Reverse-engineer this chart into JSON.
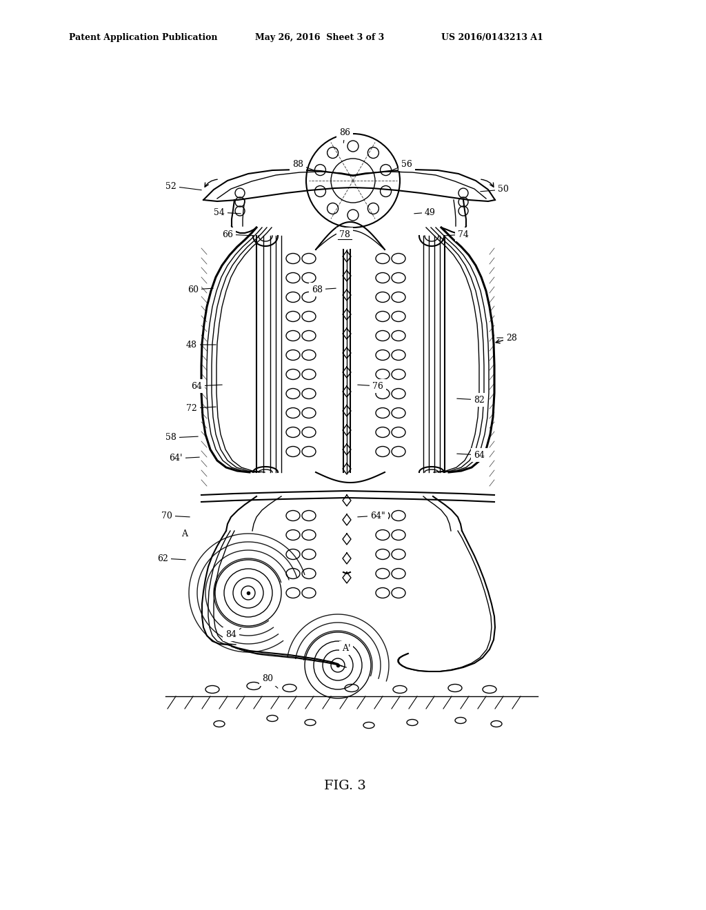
{
  "title_left": "Patent Application Publication",
  "title_mid": "May 26, 2016  Sheet 3 of 3",
  "title_right": "US 2016/0143213 A1",
  "fig_label": "FIG. 3",
  "background": "#ffffff",
  "line_color": "#000000"
}
